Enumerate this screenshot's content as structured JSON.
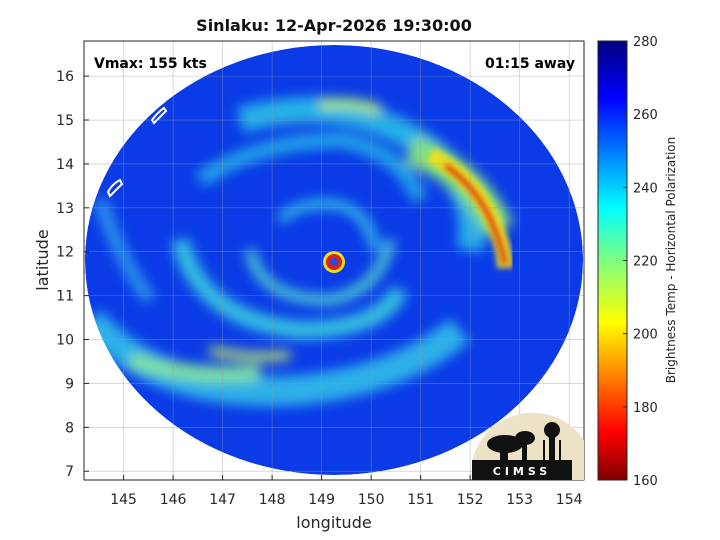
{
  "title": "Sinlaku: 12-Apr-2026 19:30:00",
  "overlays": {
    "vmax": "Vmax: 155 kts",
    "time_away": "01:15 away"
  },
  "logo": {
    "text": "CIMSS"
  },
  "chart_data": {
    "type": "heatmap",
    "title": "Sinlaku: 12-Apr-2026 19:30:00",
    "xlabel": "longitude",
    "ylabel": "latitude",
    "xlim": [
      144.2,
      154.3
    ],
    "ylim": [
      6.8,
      16.8
    ],
    "xticks": [
      145,
      146,
      147,
      148,
      149,
      150,
      151,
      152,
      153,
      154
    ],
    "yticks": [
      7,
      8,
      9,
      10,
      11,
      12,
      13,
      14,
      15,
      16
    ],
    "grid": true,
    "storm_center": {
      "lon": 149.3,
      "lat": 11.8
    },
    "colorbar": {
      "label": "Brightness Temp - Horizontal Polarization",
      "min": 160,
      "max": 280,
      "ticks": [
        160,
        180,
        200,
        220,
        240,
        260,
        280
      ],
      "colormap": [
        "#7f0000",
        "#ff0000",
        "#ffff00",
        "#00ffff",
        "#0000ff",
        "#00007f"
      ]
    }
  }
}
